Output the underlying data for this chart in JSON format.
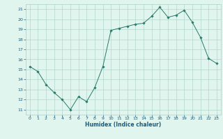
{
  "x": [
    0,
    1,
    2,
    3,
    4,
    5,
    6,
    7,
    8,
    9,
    10,
    11,
    12,
    13,
    14,
    15,
    16,
    17,
    18,
    19,
    20,
    21,
    22,
    23
  ],
  "y": [
    15.3,
    14.8,
    13.5,
    12.7,
    12.0,
    11.0,
    12.3,
    11.8,
    13.2,
    15.3,
    18.9,
    19.1,
    19.3,
    19.5,
    19.6,
    20.3,
    21.2,
    20.2,
    20.4,
    20.9,
    19.7,
    18.2,
    16.1,
    15.6
  ],
  "xlabel": "Humidex (Indice chaleur)",
  "xlim": [
    -0.5,
    23.5
  ],
  "ylim": [
    10.5,
    21.5
  ],
  "yticks": [
    11,
    12,
    13,
    14,
    15,
    16,
    17,
    18,
    19,
    20,
    21
  ],
  "xticks": [
    0,
    1,
    2,
    3,
    4,
    5,
    6,
    7,
    8,
    9,
    10,
    11,
    12,
    13,
    14,
    15,
    16,
    17,
    18,
    19,
    20,
    21,
    22,
    23
  ],
  "line_color": "#2a7a6a",
  "marker": "D",
  "marker_size": 1.8,
  "bg_color": "#dff5ee",
  "grid_color": "#aacfc4",
  "label_color": "#1a5c80",
  "tick_color": "#1a5c80"
}
